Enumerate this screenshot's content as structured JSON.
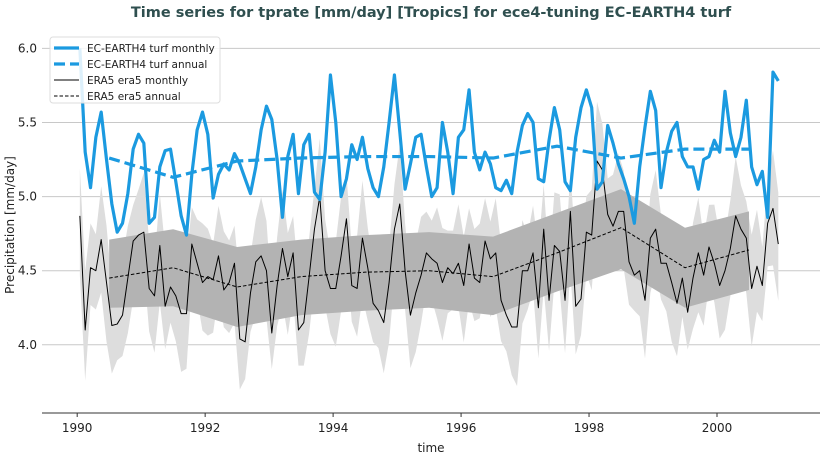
{
  "chart_data": {
    "type": "line",
    "title": "Time series for tprate [mm/day] [Tropics] for ece4-tuning EC-EARTH4 turf",
    "xlabel": "time",
    "ylabel": "Precipitation [mm/day]",
    "xlim": [
      1989.45,
      2001.61
    ],
    "ylim": [
      3.54,
      6.09
    ],
    "xticks": [
      1990,
      1992,
      1994,
      1996,
      1998,
      2000
    ],
    "yticks": [
      4.0,
      4.5,
      5.0,
      5.5,
      6.0
    ],
    "ytick_labels": [
      "4.0",
      "4.5",
      "5.0",
      "5.5",
      "6.0"
    ],
    "grid": "horizontal",
    "legend_position": "top-left",
    "monthly_start_year": 1990,
    "annual_x": [
      1990.5,
      1991.5,
      1992.5,
      1993.5,
      1994.5,
      1995.5,
      1996.5,
      1997.5,
      1998.5,
      1999.5,
      2000.5
    ],
    "series": [
      {
        "name": "EC-EARTH4 turf monthly",
        "color": "#1b9ae0",
        "style": "solid-thick",
        "values": [
          6.0,
          5.3,
          5.06,
          5.4,
          5.57,
          5.25,
          4.95,
          4.76,
          4.82,
          5.02,
          5.32,
          5.42,
          5.36,
          4.82,
          4.86,
          5.2,
          5.31,
          5.32,
          5.1,
          4.87,
          4.74,
          5.15,
          5.45,
          5.57,
          5.42,
          4.99,
          5.15,
          5.22,
          5.18,
          5.29,
          5.22,
          5.12,
          5.02,
          5.2,
          5.45,
          5.61,
          5.52,
          5.25,
          4.86,
          5.27,
          5.42,
          5.02,
          5.35,
          5.42,
          5.03,
          4.98,
          5.3,
          5.82,
          5.5,
          5.0,
          5.12,
          5.35,
          5.25,
          5.4,
          5.19,
          5.06,
          5.0,
          5.2,
          5.5,
          5.82,
          5.44,
          5.05,
          5.22,
          5.4,
          5.42,
          5.2,
          5.0,
          5.06,
          5.5,
          5.3,
          5.02,
          5.4,
          5.45,
          5.72,
          5.3,
          5.18,
          5.3,
          5.22,
          5.06,
          5.04,
          5.11,
          5.02,
          5.3,
          5.48,
          5.56,
          5.5,
          5.12,
          5.1,
          5.38,
          5.6,
          5.45,
          5.1,
          5.04,
          5.4,
          5.6,
          5.72,
          5.6,
          5.05,
          5.1,
          5.48,
          5.36,
          5.22,
          5.12,
          5.0,
          4.82,
          5.2,
          5.47,
          5.71,
          5.58,
          5.06,
          5.3,
          5.44,
          5.5,
          5.27,
          5.2,
          5.2,
          5.05,
          5.25,
          5.27,
          5.38,
          5.3,
          5.71,
          5.43,
          5.27,
          5.4,
          5.65,
          5.2,
          5.08,
          5.17,
          4.86,
          5.84,
          5.78
        ]
      },
      {
        "name": "EC-EARTH4 turf annual",
        "color": "#1b9ae0",
        "style": "dashed-thick",
        "values": [
          5.26,
          5.13,
          5.24,
          5.26,
          5.27,
          5.27,
          5.26,
          5.34,
          5.26,
          5.32,
          5.32
        ]
      },
      {
        "name": "ERA5 era5 monthly",
        "color": "#000000",
        "style": "solid-thin",
        "values": [
          4.87,
          4.1,
          4.52,
          4.5,
          4.71,
          4.42,
          4.13,
          4.14,
          4.2,
          4.45,
          4.7,
          4.74,
          4.76,
          4.38,
          4.33,
          4.67,
          4.26,
          4.39,
          4.33,
          4.21,
          4.21,
          4.68,
          4.55,
          4.42,
          4.46,
          4.44,
          4.6,
          4.37,
          4.42,
          4.55,
          4.04,
          4.02,
          4.35,
          4.56,
          4.6,
          4.5,
          4.08,
          4.4,
          4.65,
          4.46,
          4.62,
          4.1,
          4.15,
          4.46,
          4.78,
          5.0,
          4.5,
          4.38,
          4.38,
          4.6,
          4.85,
          4.4,
          4.38,
          4.72,
          4.52,
          4.28,
          4.23,
          4.15,
          4.42,
          4.78,
          4.95,
          4.5,
          4.2,
          4.35,
          4.47,
          4.62,
          4.58,
          4.55,
          4.42,
          4.52,
          4.48,
          4.55,
          4.4,
          4.68,
          4.45,
          4.42,
          4.7,
          4.58,
          4.62,
          4.3,
          4.2,
          4.12,
          4.12,
          4.5,
          4.5,
          4.62,
          4.25,
          4.78,
          4.3,
          4.67,
          4.63,
          4.3,
          4.9,
          4.26,
          4.31,
          4.76,
          4.74,
          5.24,
          5.18,
          4.88,
          4.8,
          4.9,
          4.9,
          4.56,
          4.47,
          4.5,
          4.3,
          4.72,
          4.78,
          4.55,
          4.55,
          4.42,
          4.28,
          4.45,
          4.22,
          4.45,
          4.62,
          4.47,
          4.66,
          4.55,
          4.4,
          4.5,
          4.65,
          4.87,
          4.78,
          4.72,
          4.38,
          4.53,
          4.4,
          4.82,
          4.92,
          4.68
        ]
      },
      {
        "name": "ERA5 era5 annual",
        "color": "#000000",
        "style": "dashed-thin",
        "values": [
          4.45,
          4.52,
          4.39,
          4.46,
          4.49,
          4.5,
          4.46,
          4.62,
          4.79,
          4.52,
          4.64
        ]
      }
    ],
    "monthly_band_halfwidth": 0.32,
    "monthly_band_color": "#dddddd",
    "annual_band": {
      "color": "#b3b3b3",
      "lower": [
        4.25,
        4.26,
        4.12,
        4.2,
        4.23,
        4.25,
        4.2,
        4.36,
        4.51,
        4.25,
        4.37
      ],
      "upper": [
        4.71,
        4.78,
        4.66,
        4.71,
        4.74,
        4.76,
        4.73,
        4.89,
        5.05,
        4.79,
        4.9
      ]
    }
  }
}
